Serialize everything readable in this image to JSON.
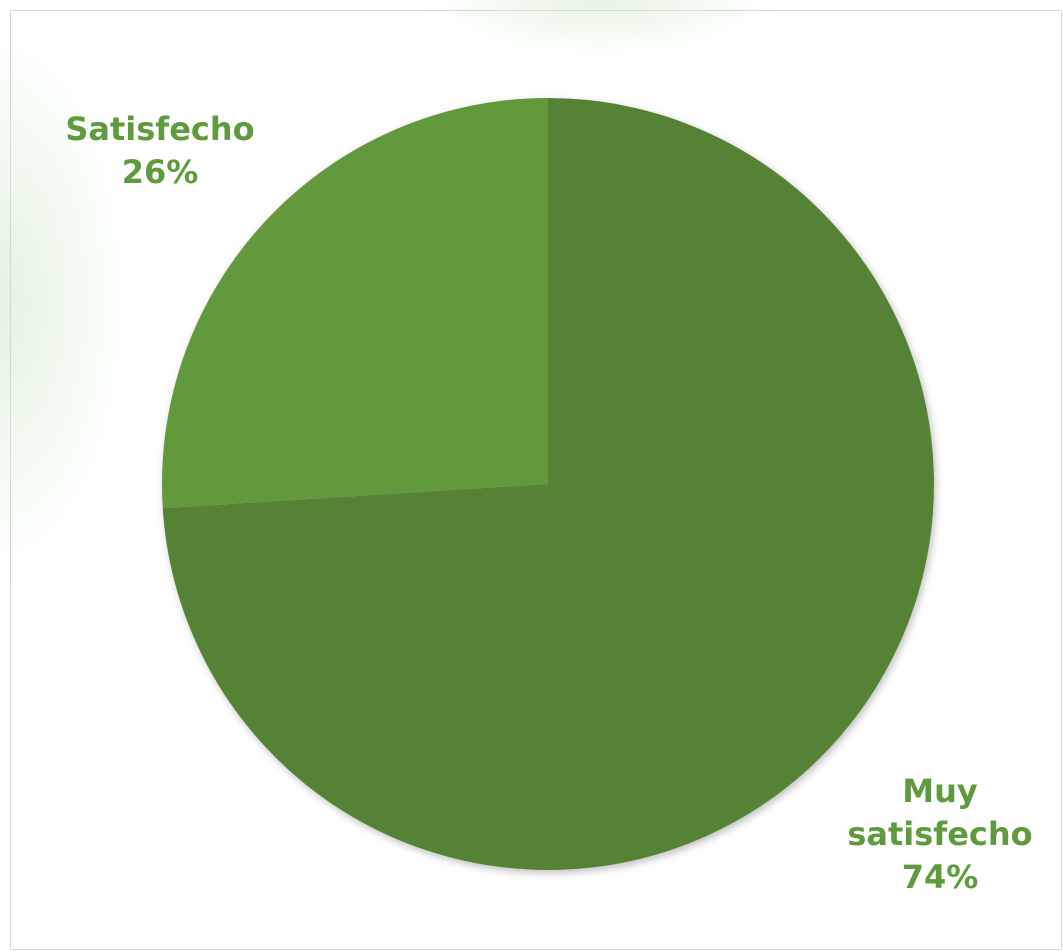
{
  "chart_data": {
    "type": "pie",
    "categories": [
      "Muy satisfecho",
      "Satisfecho"
    ],
    "values": [
      74,
      26
    ],
    "colors": [
      "#548235",
      "#62993d"
    ],
    "labels": [
      {
        "name_lines": [
          "Muy",
          "satisfecho"
        ],
        "percent": "74%"
      },
      {
        "name_lines": [
          "Satisfecho"
        ],
        "percent": "26%"
      }
    ],
    "label_color": "#5f9a3c",
    "legend": "none"
  }
}
